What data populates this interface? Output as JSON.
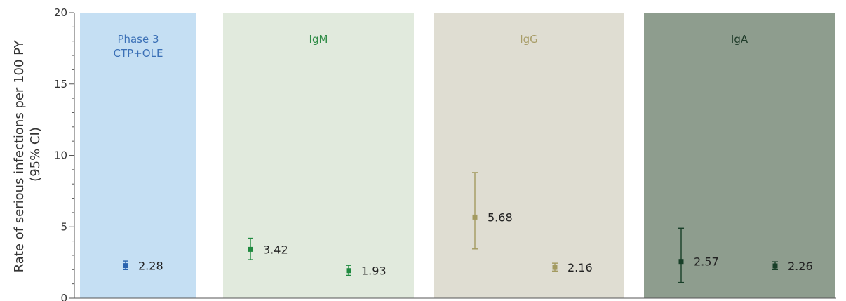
{
  "chart_data": {
    "type": "scatter",
    "ylabel_line1": "Rate of serious infections per 100 PY",
    "ylabel_line2": "(95% CI)",
    "ylim": [
      0,
      20
    ],
    "yticks": [
      0,
      5,
      10,
      15,
      20
    ],
    "grid": false,
    "panels": [
      {
        "title_lines": [
          "Phase 3",
          "CTP+OLE"
        ],
        "background": "#c5dff3",
        "title_color": "#3b70b6",
        "marker_color": "#2a63ae",
        "points": [
          {
            "value": 2.28,
            "ci": [
              2.0,
              2.6
            ],
            "label": "2.28"
          }
        ]
      },
      {
        "title_lines": [
          "IgM"
        ],
        "background": "#e1eadd",
        "title_color": "#2e8b45",
        "marker_color": "#1f8a3f",
        "points": [
          {
            "value": 3.42,
            "ci": [
              2.7,
              4.2
            ],
            "label": "3.42"
          },
          {
            "value": 1.93,
            "ci": [
              1.6,
              2.3
            ],
            "label": "1.93"
          }
        ]
      },
      {
        "title_lines": [
          "IgG"
        ],
        "background": "#dfddd2",
        "title_color": "#a89d68",
        "marker_color": "#a39a60",
        "points": [
          {
            "value": 5.68,
            "ci": [
              3.45,
              8.8
            ],
            "label": "5.68"
          },
          {
            "value": 2.16,
            "ci": [
              1.9,
              2.45
            ],
            "label": "2.16"
          }
        ]
      },
      {
        "title_lines": [
          "IgA"
        ],
        "background": "#8e9d8e",
        "title_color": "#1e3a28",
        "marker_color": "#183f28",
        "points": [
          {
            "value": 2.57,
            "ci": [
              1.1,
              4.9
            ],
            "label": "2.57"
          },
          {
            "value": 2.26,
            "ci": [
              2.0,
              2.55
            ],
            "label": "2.26"
          }
        ]
      }
    ]
  }
}
